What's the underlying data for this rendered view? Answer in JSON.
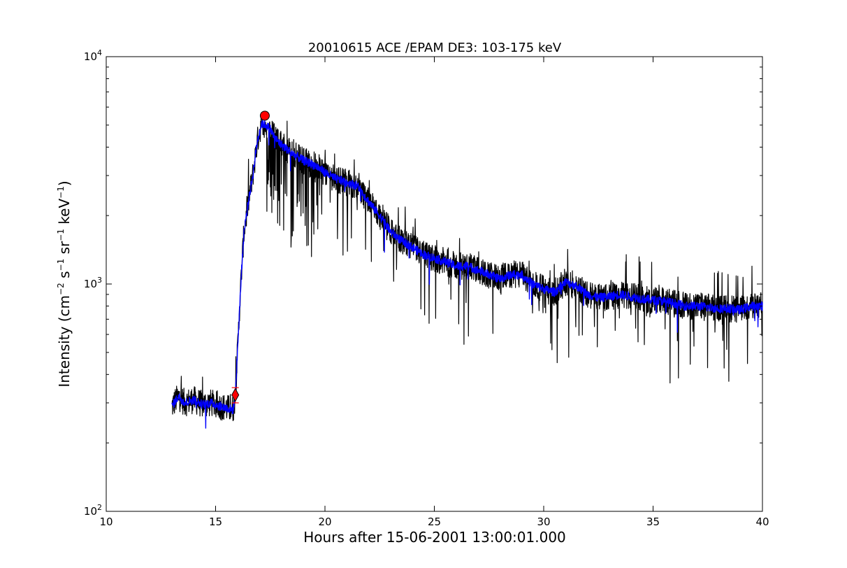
{
  "chart_data": {
    "type": "line",
    "title": "20010615 ACE /EPAM DE3: 103-175 keV",
    "xlabel": "Hours after 15-06-2001 13:00:01.000",
    "ylabel": {
      "text": "Intensity (cm",
      "exp1": "−2",
      "s": " s",
      "exp2": "−1",
      "sr": " sr",
      "exp3": "−1",
      "kev": " keV",
      "exp4": "−1",
      "close": ")"
    },
    "xlim": [
      10,
      40
    ],
    "ylim": [
      100,
      10000
    ],
    "yscale": "log",
    "grid": false,
    "x_ticks": [
      10,
      15,
      20,
      25,
      30,
      35,
      40
    ],
    "x_tick_labels": [
      "10",
      "15",
      "20",
      "25",
      "30",
      "35",
      "40"
    ],
    "y_ticks": [
      100,
      1000,
      10000
    ],
    "y_tick_labels": [
      {
        "base": "10",
        "exp": "2"
      },
      {
        "base": "10",
        "exp": "3"
      },
      {
        "base": "10",
        "exp": "4"
      }
    ],
    "series": [
      {
        "style": "raw",
        "color": "#000000",
        "x": [
          13.0,
          13.3,
          13.6,
          14.0,
          14.4,
          14.8,
          15.2,
          15.5,
          15.8,
          15.9,
          16.0,
          16.1,
          16.2,
          16.3,
          16.5,
          16.7,
          16.9,
          17.1,
          17.3,
          17.5,
          17.7,
          18.0,
          18.3,
          18.6,
          19.0,
          19.3,
          19.6,
          20.0,
          20.5,
          21.0,
          21.5,
          22.0,
          22.5,
          23.0,
          23.5,
          24.0,
          24.5,
          25.0,
          25.5,
          26.0,
          26.5,
          27.0,
          27.5,
          28.0,
          28.5,
          29.0,
          29.5,
          30.0,
          30.5,
          31.0,
          31.5,
          32.0,
          32.5,
          33.0,
          33.5,
          34.0,
          34.5,
          35.0,
          35.5,
          36.0,
          36.5,
          37.0,
          37.5,
          38.0,
          38.5,
          39.0,
          39.5,
          40.0
        ],
        "values": [
          290,
          320,
          300,
          310,
          295,
          300,
          290,
          285,
          280,
          320,
          500,
          800,
          1200,
          1700,
          2300,
          3000,
          4200,
          5100,
          5000,
          4800,
          4400,
          4100,
          3900,
          3700,
          3500,
          3400,
          3300,
          3100,
          2900,
          2800,
          2700,
          2300,
          2000,
          1700,
          1550,
          1450,
          1350,
          1300,
          1250,
          1200,
          1200,
          1150,
          1100,
          1050,
          1100,
          1100,
          1000,
          950,
          920,
          1020,
          980,
          900,
          870,
          880,
          900,
          880,
          860,
          850,
          840,
          820,
          800,
          800,
          790,
          780,
          780,
          770,
          800,
          800
        ]
      },
      {
        "style": "smoothed",
        "color": "#0000ff",
        "x": [
          13.0,
          13.3,
          13.6,
          14.0,
          14.4,
          14.8,
          15.2,
          15.5,
          15.8,
          15.9,
          16.0,
          16.1,
          16.2,
          16.3,
          16.5,
          16.7,
          16.9,
          17.1,
          17.3,
          17.5,
          17.7,
          18.0,
          18.3,
          18.6,
          19.0,
          19.3,
          19.6,
          20.0,
          20.5,
          21.0,
          21.5,
          22.0,
          22.5,
          23.0,
          23.5,
          24.0,
          24.5,
          25.0,
          25.5,
          26.0,
          26.5,
          27.0,
          27.5,
          28.0,
          28.5,
          29.0,
          29.5,
          30.0,
          30.5,
          31.0,
          31.5,
          32.0,
          32.5,
          33.0,
          33.5,
          34.0,
          34.5,
          35.0,
          35.5,
          36.0,
          36.5,
          37.0,
          37.5,
          38.0,
          38.5,
          39.0,
          39.5,
          40.0
        ],
        "values": [
          290,
          320,
          300,
          310,
          295,
          300,
          290,
          285,
          280,
          320,
          500,
          800,
          1200,
          1700,
          2300,
          3000,
          4200,
          5100,
          5000,
          4800,
          4400,
          4100,
          3900,
          3700,
          3500,
          3400,
          3300,
          3100,
          2900,
          2800,
          2700,
          2300,
          2000,
          1700,
          1550,
          1450,
          1350,
          1300,
          1250,
          1200,
          1200,
          1150,
          1100,
          1050,
          1100,
          1100,
          1000,
          950,
          920,
          1020,
          980,
          900,
          870,
          880,
          900,
          880,
          860,
          850,
          840,
          820,
          800,
          800,
          790,
          780,
          780,
          770,
          800,
          800
        ]
      }
    ],
    "markers": [
      {
        "shape": "diamond",
        "color": "#ff0000",
        "x": 15.9,
        "y": 325,
        "yerr": [
          300,
          350
        ]
      },
      {
        "shape": "circle",
        "color": "#ff0000",
        "x": 17.25,
        "y": 5500
      }
    ]
  }
}
